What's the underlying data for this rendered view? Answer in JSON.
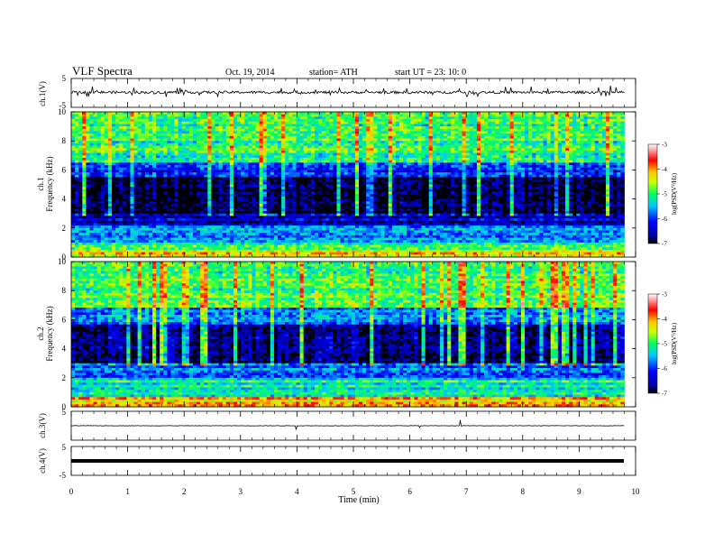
{
  "header": {
    "title": "VLF  Spectra",
    "date": "Oct. 19, 2014",
    "station": "station= ATH",
    "start": "start  UT  =   23: 10: 0"
  },
  "chart_data": [
    {
      "type": "line",
      "name": "ch1-waveform",
      "ylabel": "ch.1(V)",
      "ylim": [
        -5,
        5
      ],
      "y_ticks": [
        "5",
        "-5"
      ],
      "baseline": 0.2,
      "description_level": "noisy waveform around ~0 V with spikes to about ±2 V"
    },
    {
      "type": "heatmap",
      "name": "ch1-spectrogram",
      "ylabel": "ch.1\nFrequency  (kHz)",
      "ylabel_line1": "ch.1",
      "ylabel_line2": "Frequency  (kHz)",
      "ylim": [
        0,
        10
      ],
      "y_ticks": [
        "0",
        "2",
        "4",
        "6",
        "8",
        "10"
      ],
      "bands": [
        {
          "from": 0.0,
          "to": 0.5,
          "level": -4.2
        },
        {
          "from": 0.5,
          "to": 1.0,
          "level": -5.0
        },
        {
          "from": 1.0,
          "to": 2.2,
          "level": -5.7
        },
        {
          "from": 2.2,
          "to": 3.0,
          "level": -6.5
        },
        {
          "from": 3.0,
          "to": 5.5,
          "level": -6.9
        },
        {
          "from": 5.5,
          "to": 6.5,
          "level": -6.0
        },
        {
          "from": 6.5,
          "to": 10.0,
          "level": -5.0
        }
      ],
      "colorbar": {
        "label": "log(PSD(V²/Hz)",
        "ticks": [
          "-3",
          "-4",
          "-5",
          "-6",
          "-7"
        ],
        "range": [
          -7,
          -3
        ]
      }
    },
    {
      "type": "heatmap",
      "name": "ch2-spectrogram",
      "ylabel_line1": "ch.2",
      "ylabel_line2": "Frequency  (kHz)",
      "ylim": [
        0,
        10
      ],
      "y_ticks": [
        "0",
        "2",
        "4",
        "6",
        "8",
        "10"
      ],
      "bands": [
        {
          "from": 0.0,
          "to": 0.6,
          "level": -4.2
        },
        {
          "from": 0.6,
          "to": 2.0,
          "level": -5.2
        },
        {
          "from": 2.0,
          "to": 3.0,
          "level": -5.8
        },
        {
          "from": 3.0,
          "to": 5.6,
          "level": -6.6
        },
        {
          "from": 5.6,
          "to": 6.8,
          "level": -5.8
        },
        {
          "from": 6.8,
          "to": 10.0,
          "level": -4.9
        }
      ],
      "colorbar": {
        "label": "log(PSD(V²/Hz)",
        "ticks": [
          "-3",
          "-4",
          "-5",
          "-6",
          "-7"
        ],
        "range": [
          -7,
          -3
        ]
      }
    },
    {
      "type": "line",
      "name": "ch3-waveform",
      "ylabel": "ch.3(V)",
      "ylim": [
        -5,
        5
      ],
      "y_ticks": [
        "5"
      ],
      "baseline": 0.0,
      "description_level": "nearly flat trace near 0 V"
    },
    {
      "type": "line",
      "name": "ch4-waveform",
      "ylabel": "ch.4(V)",
      "ylim": [
        -5,
        5
      ],
      "y_ticks": [
        "5",
        "-5"
      ],
      "baseline": 0.0,
      "description_level": "thick flat trace near 0 V"
    }
  ],
  "x_axis": {
    "label": "Time  (min)",
    "xlim": [
      0,
      10
    ],
    "ticks": [
      "0",
      "1",
      "2",
      "3",
      "4",
      "5",
      "6",
      "7",
      "8",
      "9",
      "10"
    ],
    "data_end": 9.8
  }
}
